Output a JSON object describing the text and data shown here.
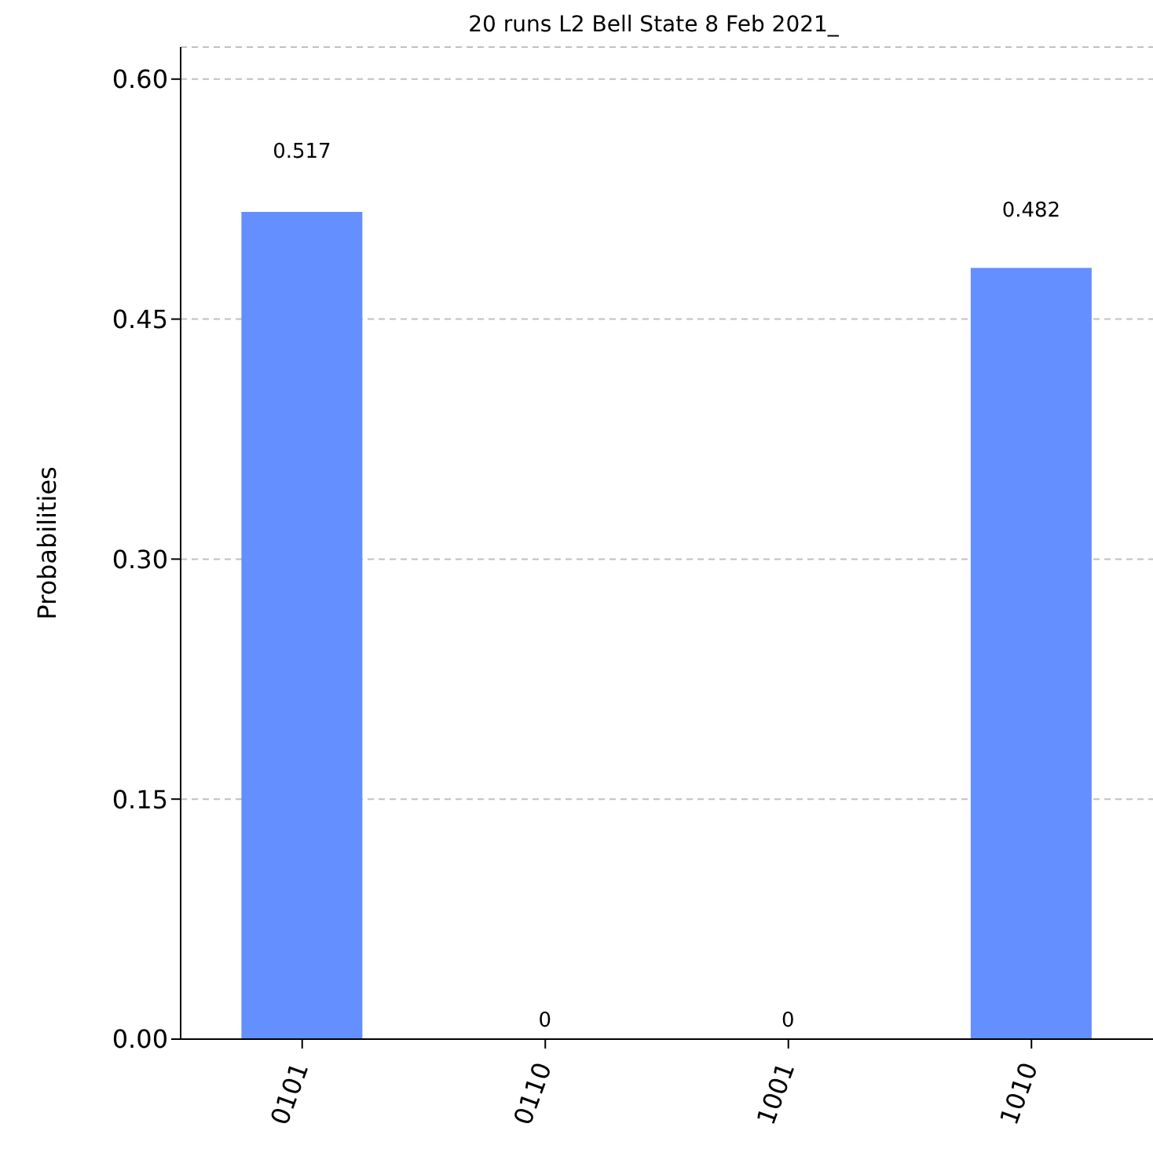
{
  "chart_data": {
    "type": "bar",
    "title": "20 runs L2 Bell State 8 Feb 2021_",
    "ylabel": "Probabilities",
    "categories": [
      "0101",
      "0110",
      "1001",
      "1010"
    ],
    "values": [
      0.517,
      0,
      0,
      0.482
    ],
    "color": "#648fff",
    "data_labels": true,
    "ylim": [
      0,
      0.62
    ],
    "yticks": [
      {
        "value": 0,
        "label": "0.00"
      },
      {
        "value": 0.15,
        "label": "0.15"
      },
      {
        "value": 0.3,
        "label": "0.30"
      },
      {
        "value": 0.45,
        "label": "0.45"
      },
      {
        "value": 0.6,
        "label": "0.60"
      }
    ],
    "grid": "y"
  }
}
